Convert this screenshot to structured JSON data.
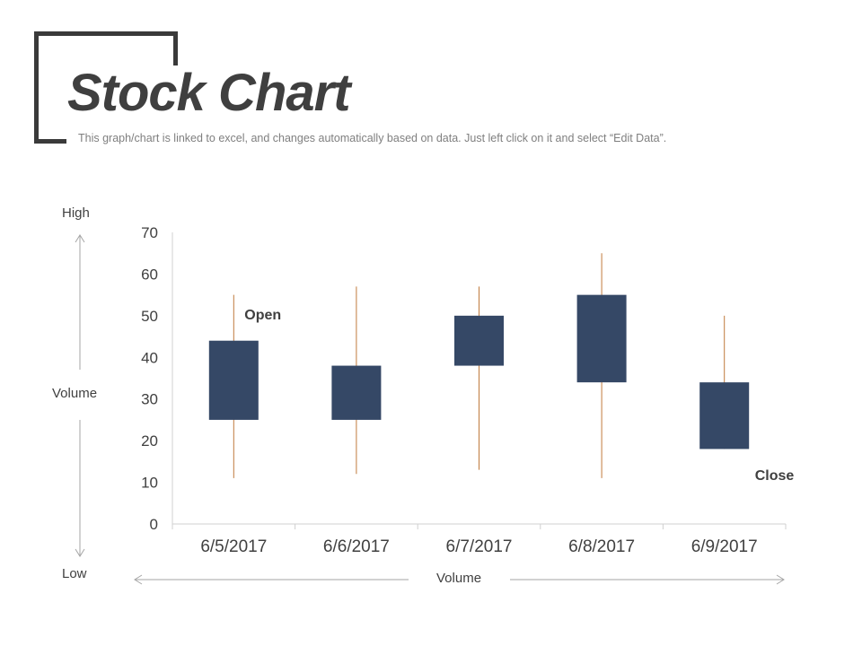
{
  "header": {
    "title": "Stock Chart",
    "subtitle": "This graph/chart is linked to excel, and changes automatically based on data. Just left click on it and select “Edit Data”."
  },
  "axis_labels": {
    "high": "High",
    "volume_vertical": "Volume",
    "low": "Low",
    "volume_horizontal": "Volume"
  },
  "colors": {
    "body": "#354866",
    "wick": "#c07a3c",
    "axis": "#d0d0d0",
    "frame": "#3a3a3a",
    "arrow": "#a6a6a6"
  },
  "chart_data": {
    "type": "candlestick",
    "categories": [
      "6/5/2017",
      "6/6/2017",
      "6/7/2017",
      "6/8/2017",
      "6/9/2017"
    ],
    "series": [
      {
        "open": 44,
        "high": 55,
        "low": 11,
        "close": 25
      },
      {
        "open": 38,
        "high": 57,
        "low": 12,
        "close": 25
      },
      {
        "open": 38,
        "high": 57,
        "low": 13,
        "close": 50
      },
      {
        "open": 34,
        "high": 65,
        "low": 11,
        "close": 55
      },
      {
        "open": 34,
        "high": 50,
        "low": 18,
        "close": 18
      }
    ],
    "ylim": [
      0,
      70
    ],
    "yticks": [
      0,
      10,
      20,
      30,
      40,
      50,
      60,
      70
    ],
    "annotations": [
      {
        "text": "Open",
        "category_index": 0
      },
      {
        "text": "Close",
        "category_index": 4
      }
    ],
    "grid": false,
    "legend": "none"
  }
}
